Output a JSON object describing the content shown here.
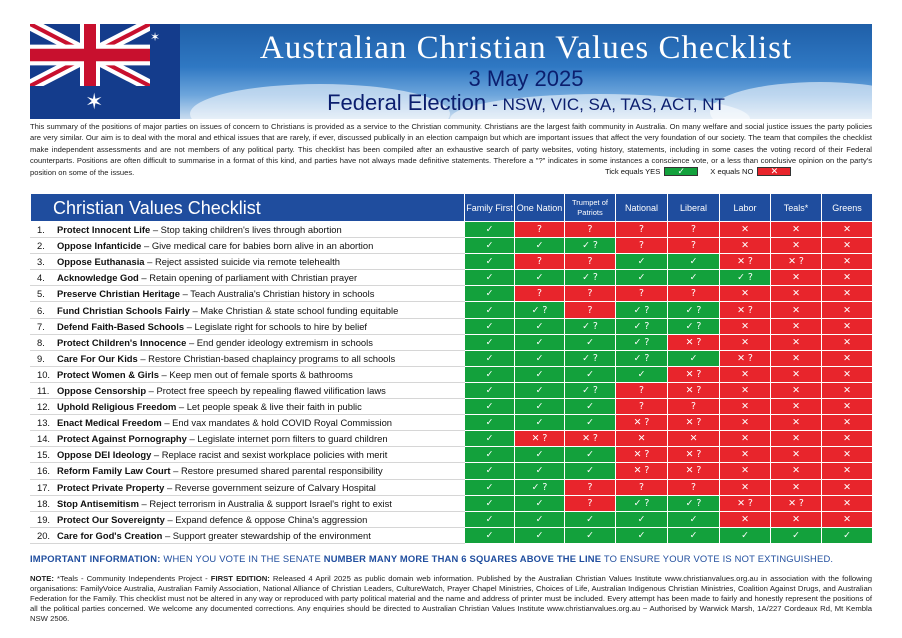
{
  "banner": {
    "title": "Australian Christian Values Checklist",
    "date": "3 May 2025",
    "election": "Federal Election",
    "states": "- NSW, VIC, SA, TAS, ACT, NT"
  },
  "intro": "This summary of the positions of major parties on issues of concern to Christians is provided as a service to the Christian community. Christians are the largest faith community in Australia. On many welfare and social justice issues the party policies are very similar. Our aim is to deal with the moral and ethical issues that are rarely, if ever, discussed publically in an election campaign but which are important issues that affect the very foundation of our society. The team that compiles the checklist make independent assessments and are not members of any political party. This checklist has been compiled after an exhaustive search of party websites, voting history, statements, including in some cases the voting record of their Federal counterparts. Positions are often difficult to summarise in a format of this kind, and parties have not always made definitive statements. Therefore a \"?\" indicates in some instances a conscience vote, or a less than conclusive opinion on the party's position on some of the issues.",
  "legend": {
    "yes_label": "Tick equals YES",
    "no_label": "X equals NO",
    "yes_mark": "✓",
    "no_mark": "✕"
  },
  "colors": {
    "header_blue": "#1f4d9e",
    "yes_green": "#13a13c",
    "no_red": "#e8252c"
  },
  "table": {
    "title": "Christian Values Checklist",
    "parties": [
      "Family First",
      "One Nation",
      "Trumpet of Patriots",
      "National",
      "Liberal",
      "Labor",
      "Teals*",
      "Greens"
    ],
    "rows": [
      {
        "num": "1.",
        "title": "Protect Innocent Life",
        "desc": " – Stop taking children's lives through abortion",
        "marks": [
          "Y",
          "?",
          "?",
          "?",
          "?",
          "N",
          "N",
          "N"
        ]
      },
      {
        "num": "2.",
        "title": "Oppose Infanticide",
        "desc": " – Give medical care for babies born alive in an abortion",
        "marks": [
          "Y",
          "Y",
          "Y?",
          "?",
          "?",
          "N",
          "N",
          "N"
        ]
      },
      {
        "num": "3.",
        "title": "Oppose Euthanasia",
        "desc": " – Reject assisted suicide via remote telehealth",
        "marks": [
          "Y",
          "?",
          "?",
          "Y",
          "Y",
          "N?",
          "N?",
          "N"
        ]
      },
      {
        "num": "4.",
        "title": "Acknowledge God",
        "desc": " – Retain opening of parliament with Christian prayer",
        "marks": [
          "Y",
          "Y",
          "Y?",
          "Y",
          "Y",
          "Y?",
          "N",
          "N"
        ]
      },
      {
        "num": "5.",
        "title": "Preserve Christian Heritage",
        "desc": " – Teach Australia's Christian history in schools",
        "marks": [
          "Y",
          "?",
          "?",
          "?",
          "?",
          "N",
          "N",
          "N"
        ]
      },
      {
        "num": "6.",
        "title": "Fund Christian Schools Fairly",
        "desc": " – Make Christian & state school funding equitable",
        "marks": [
          "Y",
          "Y?",
          "?",
          "Y?",
          "Y?",
          "N?",
          "N",
          "N"
        ]
      },
      {
        "num": "7.",
        "title": "Defend Faith-Based Schools",
        "desc": " – Legislate right for schools to hire by belief",
        "marks": [
          "Y",
          "Y",
          "Y?",
          "Y?",
          "Y?",
          "N",
          "N",
          "N"
        ]
      },
      {
        "num": "8.",
        "title": "Protect Children's Innocence",
        "desc": " – End gender ideology extremism in schools",
        "marks": [
          "Y",
          "Y",
          "Y",
          "Y?",
          "N?",
          "N",
          "N",
          "N"
        ]
      },
      {
        "num": "9.",
        "title": "Care For Our Kids",
        "desc": " – Restore Christian-based chaplaincy programs to all schools",
        "marks": [
          "Y",
          "Y",
          "Y?",
          "Y?",
          "Y",
          "N?",
          "N",
          "N"
        ]
      },
      {
        "num": "10.",
        "title": "Protect Women & Girls",
        "desc": " – Keep men out of female sports & bathrooms",
        "marks": [
          "Y",
          "Y",
          "Y",
          "Y",
          "N?",
          "N",
          "N",
          "N"
        ]
      },
      {
        "num": "11.",
        "title": "Oppose Censorship",
        "desc": " – Protect free speech by repealing flawed vilification laws",
        "marks": [
          "Y",
          "Y",
          "Y?",
          "?",
          "N?",
          "N",
          "N",
          "N"
        ]
      },
      {
        "num": "12.",
        "title": "Uphold Religious Freedom",
        "desc": " – Let people speak & live their faith in public",
        "marks": [
          "Y",
          "Y",
          "Y",
          "?",
          "?",
          "N",
          "N",
          "N"
        ]
      },
      {
        "num": "13.",
        "title": "Enact Medical Freedom",
        "desc": " – End vax mandates & hold COVID Royal Commission",
        "marks": [
          "Y",
          "Y",
          "Y",
          "N?",
          "N?",
          "N",
          "N",
          "N"
        ]
      },
      {
        "num": "14.",
        "title": "Protect Against Pornography",
        "desc": " – Legislate internet porn filters to guard children",
        "marks": [
          "Y",
          "N?",
          "N?",
          "N",
          "N",
          "N",
          "N",
          "N"
        ]
      },
      {
        "num": "15.",
        "title": "Oppose DEI Ideology",
        "desc": " – Replace racist and sexist workplace policies with merit",
        "marks": [
          "Y",
          "Y",
          "Y",
          "N?",
          "N?",
          "N",
          "N",
          "N"
        ]
      },
      {
        "num": "16.",
        "title": "Reform Family Law Court",
        "desc": " – Restore presumed shared parental responsibility",
        "marks": [
          "Y",
          "Y",
          "Y",
          "N?",
          "N?",
          "N",
          "N",
          "N"
        ]
      },
      {
        "num": "17.",
        "title": "Protect Private Property",
        "desc": " – Reverse government seizure of Calvary Hospital",
        "marks": [
          "Y",
          "Y?",
          "?",
          "?",
          "?",
          "N",
          "N",
          "N"
        ]
      },
      {
        "num": "18.",
        "title": "Stop Antisemitism",
        "desc": " – Reject terrorism in Australia & support Israel's right to exist",
        "marks": [
          "Y",
          "Y",
          "?",
          "Y?",
          "Y?",
          "N?",
          "N?",
          "N"
        ]
      },
      {
        "num": "19.",
        "title": "Protect Our Sovereignty",
        "desc": " – Expand defence & oppose China's aggression",
        "marks": [
          "Y",
          "Y",
          "Y",
          "Y",
          "Y",
          "N",
          "N",
          "N"
        ]
      },
      {
        "num": "20.",
        "title": "Care for God's Creation",
        "desc": " – Support greater stewardship of the environment",
        "marks": [
          "Y",
          "Y",
          "Y",
          "Y",
          "Y",
          "Y",
          "Y",
          "Y"
        ]
      }
    ]
  },
  "important": {
    "label": "IMPORTANT INFORMATION:",
    "text1": " WHEN YOU VOTE IN THE SENATE ",
    "emph": "NUMBER MANY MORE THAN 6 SQUARES ABOVE THE LINE",
    "text2": " TO ENSURE YOUR VOTE IS NOT EXTINGUISHED."
  },
  "note": {
    "label": "NOTE:",
    "teals": " *Teals - Community Independents Project - ",
    "edition": "FIRST EDITION:",
    "text": " Released 4 April 2025 as public domain web information. Published by the Australian Christian Values Institute www.christianvalues.org.au in association with the following organisations: FamilyVoice Australia, Australian Family Association, National Alliance of Christian Leaders, CultureWatch, Prayer Chapel Ministries, Choices of Life, Australian Indigenous Christian Ministries, Coalition Against Drugs, and Australian Federation for the Family. This checklist must not be altered in any way or reproduced with party political material and the name and address of printer must be included. Every attempt has been made to fairly and honestly represent the positions of all the political parties concerned. We welcome any documented corrections. Any enquiries should be directed to Australian Christian Values Institute www.christianvalues.org.au ~ Authorised by Warwick Marsh, 1A/227 Cordeaux Rd, Mt Kembla NSW 2506."
  }
}
